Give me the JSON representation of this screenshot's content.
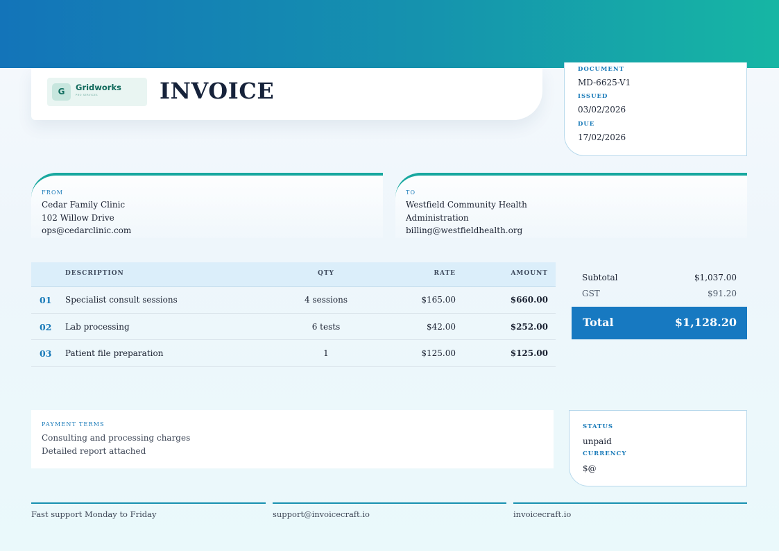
{
  "colors": {
    "accent": "#1779c1",
    "teal": "#18a89f",
    "label_blue": "#1779b8"
  },
  "brand": {
    "initial": "G",
    "name": "Gridworks",
    "tagline": "PRO SERVICES"
  },
  "document": {
    "title": "INVOICE"
  },
  "meta": {
    "document_label": "DOCUMENT",
    "document_value": "MD-6625-V1",
    "issued_label": "ISSUED",
    "issued_value": "03/02/2026",
    "due_label": "DUE",
    "due_value": "17/02/2026"
  },
  "from": {
    "label": "FROM",
    "name": "Cedar Family Clinic",
    "address": "102 Willow Drive",
    "email": "ops@cedarclinic.com"
  },
  "to": {
    "label": "TO",
    "name_line1": "Westfield Community Health",
    "name_line2": "Administration",
    "email": "billing@westfieldhealth.org"
  },
  "table": {
    "headers": {
      "description": "DESCRIPTION",
      "qty": "QTY",
      "rate": "RATE",
      "amount": "AMOUNT"
    },
    "rows": [
      {
        "num": "01",
        "description": "Specialist consult sessions",
        "qty": "4 sessions",
        "rate": "$165.00",
        "amount": "$660.00"
      },
      {
        "num": "02",
        "description": "Lab processing",
        "qty": "6 tests",
        "rate": "$42.00",
        "amount": "$252.00"
      },
      {
        "num": "03",
        "description": "Patient file preparation",
        "qty": "1",
        "rate": "$125.00",
        "amount": "$125.00"
      }
    ]
  },
  "totals": {
    "subtotal_label": "Subtotal",
    "subtotal_value": "$1,037.00",
    "gst_label": "GST",
    "gst_value": "$91.20",
    "total_label": "Total",
    "total_value": "$1,128.20"
  },
  "terms": {
    "label": "PAYMENT TERMS",
    "line1": "Consulting and processing charges",
    "line2": "Detailed report attached"
  },
  "status": {
    "status_label": "STATUS",
    "status_value": "unpaid",
    "currency_label": "CURRENCY",
    "currency_value": "$@"
  },
  "footer": {
    "support_hours": "Fast support Monday to Friday",
    "support_email": "support@invoicecraft.io",
    "website": "invoicecraft.io"
  }
}
